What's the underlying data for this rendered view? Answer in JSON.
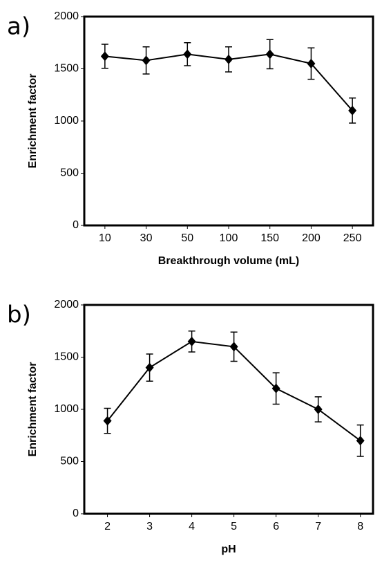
{
  "chart_data": [
    {
      "type": "line",
      "label": "a)",
      "x_label": "Breakthrough volume (mL)",
      "y_label": "Enrichment factor",
      "categories": [
        "10",
        "30",
        "50",
        "100",
        "150",
        "200",
        "250"
      ],
      "series": [
        {
          "name": "Enrichment factor",
          "color": "#000000",
          "values": [
            1620,
            1580,
            1640,
            1590,
            1640,
            1550,
            1100
          ],
          "errors": [
            115,
            130,
            110,
            120,
            140,
            150,
            120
          ]
        }
      ],
      "ylim": [
        0,
        2000
      ],
      "yticks": [
        0,
        500,
        1000,
        1500,
        2000
      ]
    },
    {
      "type": "line",
      "label": "b)",
      "x_label": "pH",
      "y_label": "Enrichment factor",
      "x": [
        2,
        3,
        4,
        5,
        6,
        7,
        8
      ],
      "series": [
        {
          "name": "Enrichment factor",
          "color": "#000000",
          "values": [
            890,
            1400,
            1650,
            1600,
            1200,
            1000,
            700
          ],
          "errors": [
            120,
            130,
            100,
            140,
            150,
            120,
            150
          ]
        }
      ],
      "xlim": [
        1.45,
        8.3
      ],
      "xticks": [
        2,
        3,
        4,
        5,
        6,
        7,
        8
      ],
      "ylim": [
        0,
        2000
      ],
      "yticks": [
        0,
        500,
        1000,
        1500,
        2000
      ]
    }
  ]
}
